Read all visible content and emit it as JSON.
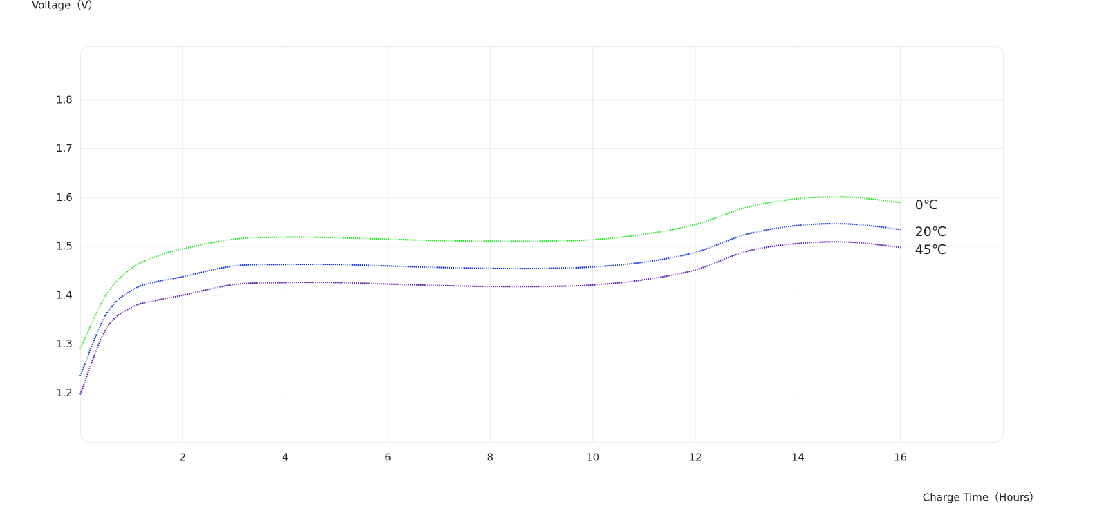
{
  "chart_data": {
    "type": "line",
    "y_label": "Voltage（V）",
    "x_label": "Charge Time（Hours）",
    "x": [
      0,
      0.5,
      1,
      1.5,
      2,
      3,
      4,
      5,
      6,
      7,
      8,
      9,
      10,
      11,
      12,
      13,
      14,
      15,
      16
    ],
    "series": [
      {
        "name": "0℃",
        "color": "#22e622",
        "values": [
          1.29,
          1.4,
          1.455,
          1.48,
          1.495,
          1.515,
          1.519,
          1.518,
          1.515,
          1.512,
          1.511,
          1.511,
          1.514,
          1.525,
          1.545,
          1.58,
          1.598,
          1.601,
          1.59
        ]
      },
      {
        "name": "20℃",
        "color": "#0a2fd6",
        "values": [
          1.235,
          1.36,
          1.41,
          1.428,
          1.438,
          1.46,
          1.463,
          1.463,
          1.46,
          1.457,
          1.455,
          1.455,
          1.458,
          1.468,
          1.488,
          1.525,
          1.543,
          1.546,
          1.535
        ]
      },
      {
        "name": "45℃",
        "color": "#5a10b0",
        "values": [
          1.197,
          1.33,
          1.375,
          1.39,
          1.4,
          1.422,
          1.426,
          1.426,
          1.423,
          1.42,
          1.418,
          1.418,
          1.421,
          1.432,
          1.452,
          1.49,
          1.506,
          1.509,
          1.498
        ]
      }
    ],
    "xlim": [
      0,
      18
    ],
    "xticks": [
      2,
      4,
      6,
      8,
      10,
      12,
      14,
      16
    ],
    "ylim": [
      1.1,
      1.91
    ],
    "yticks": [
      1.2,
      1.3,
      1.4,
      1.5,
      1.6,
      1.7,
      1.8
    ],
    "grid": true
  }
}
